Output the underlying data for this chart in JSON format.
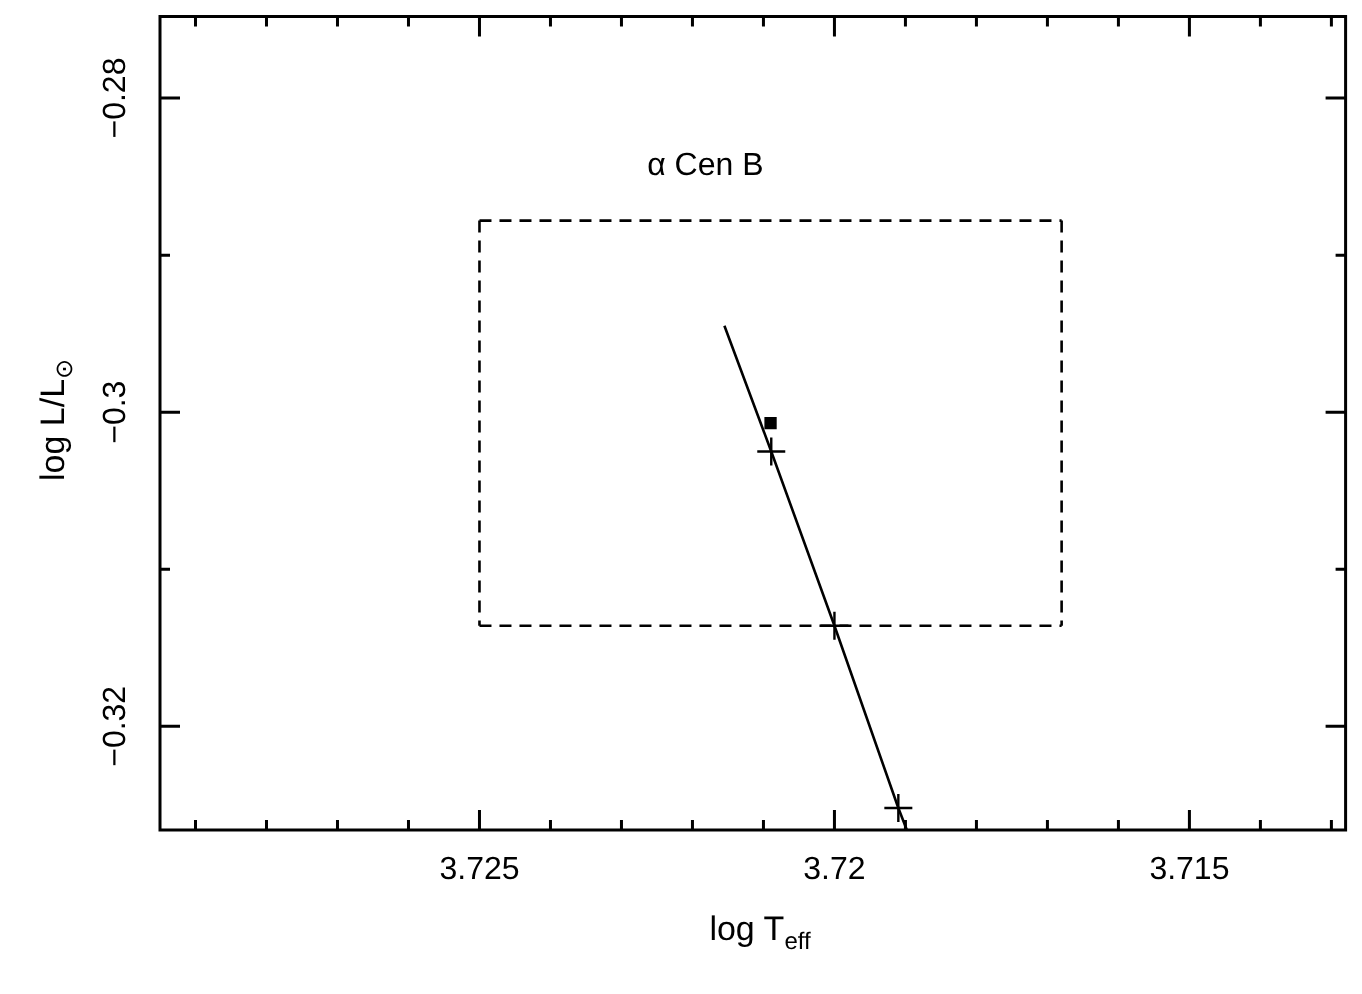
{
  "chart_data": {
    "type": "line",
    "xlabel": "log T$_{eff}$",
    "ylabel": "log L/L$_{⊙}$",
    "annotations": [
      "α Cen B"
    ],
    "xlim": [
      3.7295,
      3.7128
    ],
    "ylim": [
      -0.3266,
      -0.2748
    ],
    "xticks": [
      {
        "value": 3.729,
        "label": null
      },
      {
        "value": 3.728,
        "label": null
      },
      {
        "value": 3.727,
        "label": null
      },
      {
        "value": 3.726,
        "label": null
      },
      {
        "value": 3.725,
        "label": "3.725"
      },
      {
        "value": 3.724,
        "label": null
      },
      {
        "value": 3.723,
        "label": null
      },
      {
        "value": 3.722,
        "label": null
      },
      {
        "value": 3.721,
        "label": null
      },
      {
        "value": 3.72,
        "label": "3.72"
      },
      {
        "value": 3.719,
        "label": null
      },
      {
        "value": 3.718,
        "label": null
      },
      {
        "value": 3.717,
        "label": null
      },
      {
        "value": 3.716,
        "label": null
      },
      {
        "value": 3.715,
        "label": "3.715"
      },
      {
        "value": 3.714,
        "label": null
      },
      {
        "value": 3.713,
        "label": null
      }
    ],
    "yticks": [
      {
        "value": -0.32,
        "label": "−0.32"
      },
      {
        "value": -0.31,
        "label": null
      },
      {
        "value": -0.3,
        "label": "−0.3"
      },
      {
        "value": -0.29,
        "label": null
      },
      {
        "value": -0.28,
        "label": "−0.28"
      }
    ],
    "legend": false,
    "series": [
      {
        "color": "#000000",
        "marker": "none",
        "line_style": "solid",
        "x": [
          3.72155,
          3.72089,
          3.72,
          3.7191,
          3.71898
        ],
        "values": [
          -0.2945,
          -0.3025,
          -0.3136,
          -0.3252,
          -0.3266
        ]
      },
      {
        "type": "scatter",
        "color": "#000000",
        "marker": "cross",
        "x": [
          3.72089,
          3.72,
          3.7191
        ],
        "values": [
          -0.3025,
          -0.3136,
          -0.3252
        ]
      },
      {
        "type": "scatter",
        "color": "#000000",
        "marker": "square",
        "x": [
          3.7209
        ],
        "values": [
          -0.3007
        ]
      },
      {
        "color": "#000000",
        "marker": "none",
        "line_style": "dashed",
        "x": [
          3.725,
          3.7168
        ],
        "values": [
          -0.2878,
          -0.2878
        ]
      },
      {
        "color": "#000000",
        "marker": "none",
        "line_style": "dashed",
        "x": [
          3.725,
          3.7168
        ],
        "values": [
          -0.3136,
          -0.3136
        ]
      },
      {
        "color": "#000000",
        "marker": "none",
        "line_style": "dashed",
        "x": [
          3.725,
          3.725
        ],
        "values": [
          -0.2878,
          -0.3136
        ]
      },
      {
        "color": "#000000",
        "marker": "none",
        "line_style": "dashed",
        "x": [
          3.7168,
          3.7168
        ],
        "values": [
          -0.2878,
          -0.3136
        ]
      }
    ]
  }
}
